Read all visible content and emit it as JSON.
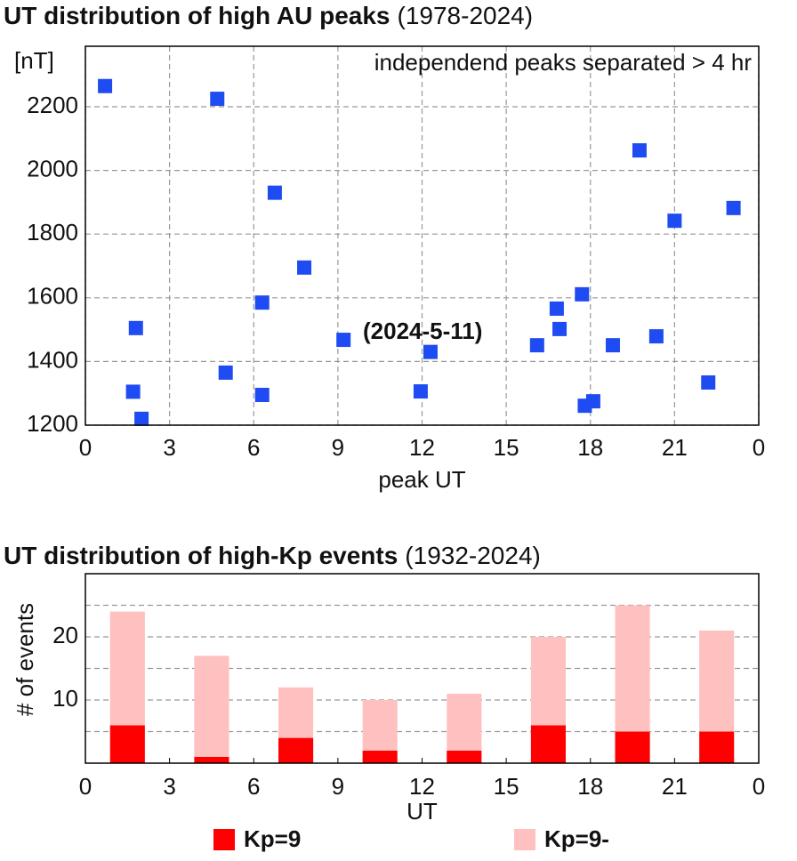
{
  "chart_data": [
    {
      "type": "scatter",
      "title": "UT distribution of high AU peaks",
      "subtitle": "(1978-2024)",
      "y_label": "[nT]",
      "x_label": "peak UT",
      "annotations": [
        "independend peaks separated > 4 hr",
        "(2024-5-11)"
      ],
      "x": [
        0.7,
        1.8,
        1.7,
        2.0,
        4.7,
        5.0,
        6.3,
        6.3,
        6.75,
        7.8,
        9.2,
        11.95,
        12.3,
        16.1,
        16.8,
        16.9,
        17.7,
        17.8,
        18.1,
        18.8,
        19.75,
        20.35,
        21.0,
        22.2,
        23.1
      ],
      "values": [
        2265,
        1505,
        1305,
        1220,
        2225,
        1365,
        1585,
        1295,
        1930,
        1695,
        1468,
        1306,
        1430,
        1451,
        1566,
        1502,
        1611,
        1261,
        1275,
        1451,
        2063,
        1479,
        1842,
        1334,
        1882
      ],
      "color": "#1f4cf2",
      "xlim": [
        0,
        24
      ],
      "ylim": [
        1200,
        2390
      ],
      "xticks": [
        0,
        3,
        6,
        9,
        12,
        15,
        18,
        21,
        {
          "value": 24,
          "label": "0"
        }
      ],
      "yticks": [
        1200,
        1400,
        1600,
        1800,
        2000,
        2200
      ],
      "grid": true
    },
    {
      "type": "stacked_bar",
      "title": "UT distribution of high-Kp events",
      "subtitle": "(1932-2024)",
      "y_label": "# of events",
      "x_label": "UT",
      "x": [
        1.5,
        4.5,
        7.5,
        10.5,
        13.5,
        16.5,
        19.5,
        22.5
      ],
      "series": [
        {
          "name": "Kp=9",
          "color": "#ff0000",
          "values": [
            6,
            1,
            4,
            2,
            2,
            6,
            5,
            5
          ]
        },
        {
          "name": "Kp=9-",
          "color": "#ffc0c0",
          "values": [
            18,
            16,
            8,
            8,
            9,
            14,
            20,
            16
          ]
        }
      ],
      "xlim": [
        0,
        24
      ],
      "ylim": [
        0,
        30
      ],
      "xticks": [
        0,
        3,
        6,
        9,
        12,
        15,
        18,
        21,
        {
          "value": 24,
          "label": "0"
        }
      ],
      "yticks": [
        10,
        20
      ],
      "minor_yticks": [
        5,
        15,
        25
      ],
      "grid": true,
      "legend": "bottom"
    }
  ]
}
